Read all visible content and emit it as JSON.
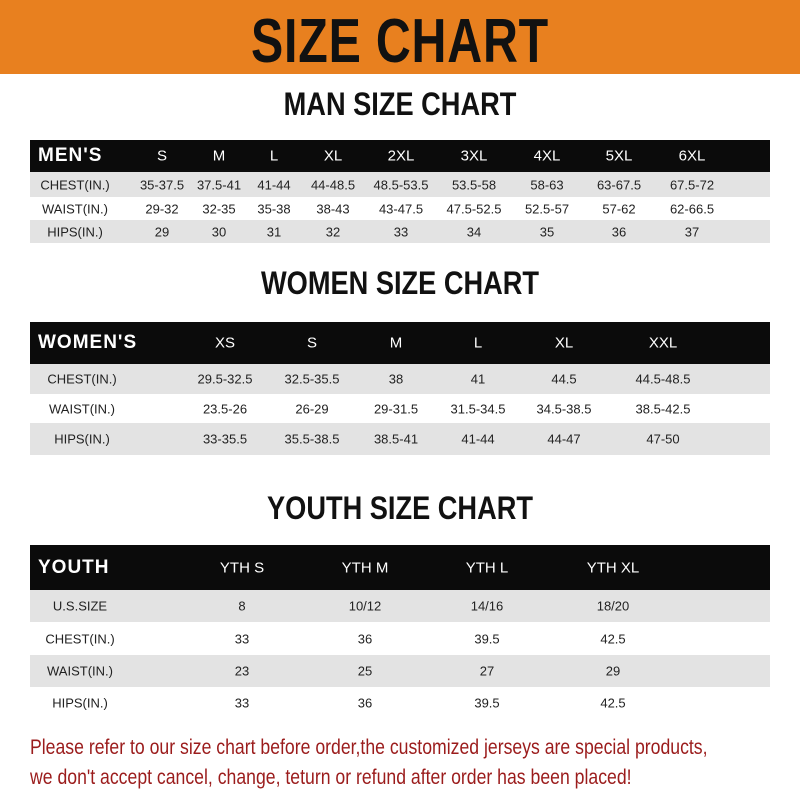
{
  "header": {
    "title": "SIZE CHART",
    "color": "#E8801F"
  },
  "men": {
    "title": "MAN SIZE CHART",
    "header_label": "MEN'S",
    "sizes": [
      "S",
      "M",
      "L",
      "XL",
      "2XL",
      "3XL",
      "4XL",
      "5XL",
      "6XL"
    ],
    "rows": [
      {
        "label": "CHEST(IN.)",
        "values": [
          "35-37.5",
          "37.5-41",
          "41-44",
          "44-48.5",
          "48.5-53.5",
          "53.5-58",
          "58-63",
          "63-67.5",
          "67.5-72"
        ]
      },
      {
        "label": "WAIST(IN.)",
        "values": [
          "29-32",
          "32-35",
          "35-38",
          "38-43",
          "43-47.5",
          "47.5-52.5",
          "52.5-57",
          "57-62",
          "62-66.5"
        ]
      },
      {
        "label": "HIPS(IN.)",
        "values": [
          "29",
          "30",
          "31",
          "32",
          "33",
          "34",
          "35",
          "36",
          "37"
        ]
      }
    ]
  },
  "women": {
    "title": "WOMEN SIZE CHART",
    "header_label": "WOMEN'S",
    "sizes": [
      "XS",
      "S",
      "M",
      "L",
      "XL",
      "XXL"
    ],
    "rows": [
      {
        "label": "CHEST(IN.)",
        "values": [
          "29.5-32.5",
          "32.5-35.5",
          "38",
          "41",
          "44.5",
          "44.5-48.5"
        ]
      },
      {
        "label": "WAIST(IN.)",
        "values": [
          "23.5-26",
          "26-29",
          "29-31.5",
          "31.5-34.5",
          "34.5-38.5",
          "38.5-42.5"
        ]
      },
      {
        "label": "HIPS(IN.)",
        "values": [
          "33-35.5",
          "35.5-38.5",
          "38.5-41",
          "41-44",
          "44-47",
          "47-50"
        ]
      }
    ]
  },
  "youth": {
    "title": "YOUTH SIZE CHART",
    "header_label": "YOUTH",
    "sizes": [
      "YTH S",
      "YTH M",
      "YTH L",
      "YTH XL"
    ],
    "rows": [
      {
        "label": "U.S.SIZE",
        "values": [
          "8",
          "10/12",
          "14/16",
          "18/20"
        ]
      },
      {
        "label": "CHEST(IN.)",
        "values": [
          "33",
          "36",
          "39.5",
          "42.5"
        ]
      },
      {
        "label": "WAIST(IN.)",
        "values": [
          "23",
          "25",
          "27",
          "29"
        ]
      },
      {
        "label": "HIPS(IN.)",
        "values": [
          "33",
          "36",
          "39.5",
          "42.5"
        ]
      }
    ]
  },
  "note": {
    "line1": "Please refer to our size chart before order,the customized jerseys are special products,",
    "line2": "we don't accept cancel, change, teturn or refund after order has been placed!",
    "color": "#9b1c1c"
  }
}
